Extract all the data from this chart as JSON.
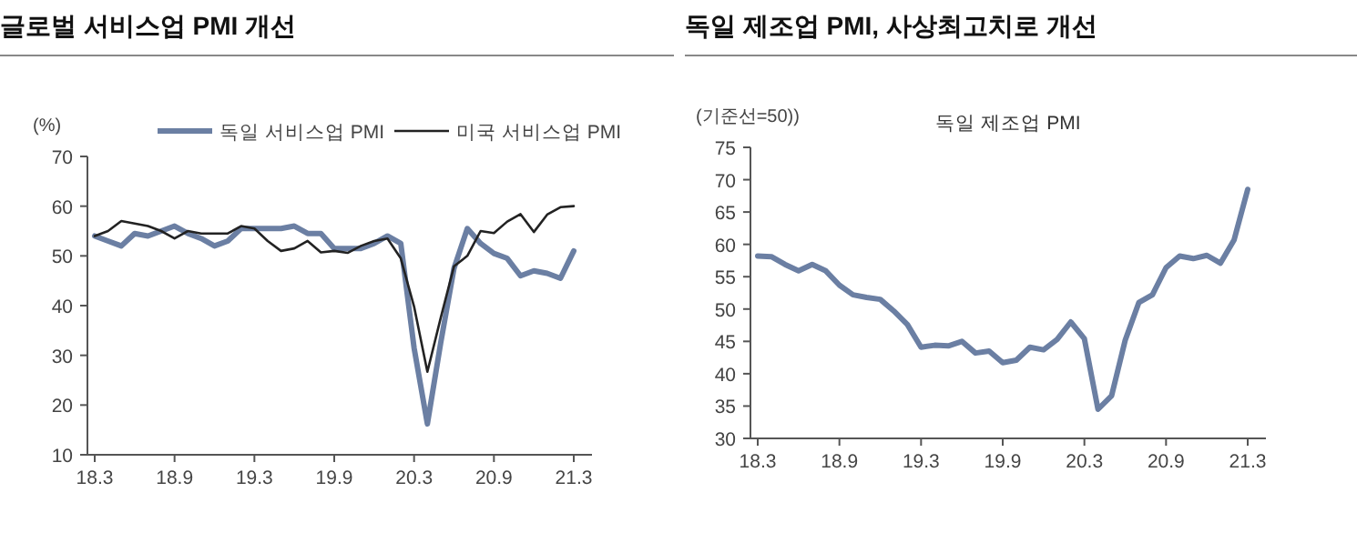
{
  "chart_data": [
    {
      "type": "line",
      "title": "글로벌 서비스업 PMI 개선",
      "ylabel": "(%)",
      "legend": "top",
      "categories": [
        "18.3",
        null,
        null,
        null,
        null,
        null,
        "18.9",
        null,
        null,
        null,
        null,
        null,
        "19.3",
        null,
        null,
        null,
        null,
        null,
        "19.9",
        null,
        null,
        null,
        null,
        null,
        "20.3",
        null,
        null,
        null,
        null,
        null,
        "20.9",
        null,
        null,
        null,
        null,
        null,
        "21.3"
      ],
      "ylim": [
        10,
        70
      ],
      "yticks": [
        10,
        20,
        30,
        40,
        50,
        60,
        70
      ],
      "series": [
        {
          "name": "독일 서비스업 PMI",
          "color": "#6b7fa3",
          "values": [
            54,
            53,
            52,
            54.5,
            54,
            55,
            56,
            54.5,
            53.5,
            52,
            53,
            55.5,
            55.5,
            55.5,
            55.5,
            56,
            54.5,
            54.5,
            51.5,
            51.5,
            51.5,
            52.5,
            54,
            52.5,
            31.5,
            16.2,
            32.5,
            47.5,
            55.5,
            52.5,
            50.5,
            49.5,
            46,
            47,
            46.5,
            45.5,
            51
          ]
        },
        {
          "name": "미국 서비스업 PMI",
          "color": "#222222",
          "values": [
            54,
            55,
            57,
            56.5,
            56,
            55,
            53.5,
            55,
            54.5,
            54.5,
            54.5,
            56,
            55.5,
            53,
            51,
            51.5,
            53,
            50.7,
            51,
            50.6,
            52,
            53,
            53.5,
            49.5,
            39.8,
            26.7,
            37.5,
            47.9,
            50,
            55,
            54.6,
            56.9,
            58.4,
            54.8,
            58.3,
            59.8,
            60
          ]
        }
      ]
    },
    {
      "type": "line",
      "title": "독일 제조업 PMI, 사상최고치로 개선",
      "ylabel": "(기준선=50))",
      "legend": "top",
      "categories": [
        "18.3",
        null,
        null,
        null,
        null,
        null,
        "18.9",
        null,
        null,
        null,
        null,
        null,
        "19.3",
        null,
        null,
        null,
        null,
        null,
        "19.9",
        null,
        null,
        null,
        null,
        null,
        "20.3",
        null,
        null,
        null,
        null,
        null,
        "20.9",
        null,
        null,
        null,
        null,
        null,
        "21.3"
      ],
      "ylim": [
        30,
        75
      ],
      "yticks": [
        30,
        35,
        40,
        45,
        50,
        55,
        60,
        65,
        70,
        75
      ],
      "series": [
        {
          "name": "독일 제조업 PMI",
          "color": "#6b7fa3",
          "values": [
            58.2,
            58.1,
            56.9,
            55.9,
            56.9,
            55.9,
            53.7,
            52.2,
            51.8,
            51.5,
            49.7,
            47.6,
            44.1,
            44.4,
            44.3,
            45,
            43.2,
            43.5,
            41.7,
            42.1,
            44.1,
            43.7,
            45.3,
            48,
            45.4,
            34.5,
            36.6,
            45.2,
            51,
            52.2,
            56.4,
            58.2,
            57.8,
            58.3,
            57.1,
            60.7,
            68.5
          ]
        }
      ]
    }
  ]
}
